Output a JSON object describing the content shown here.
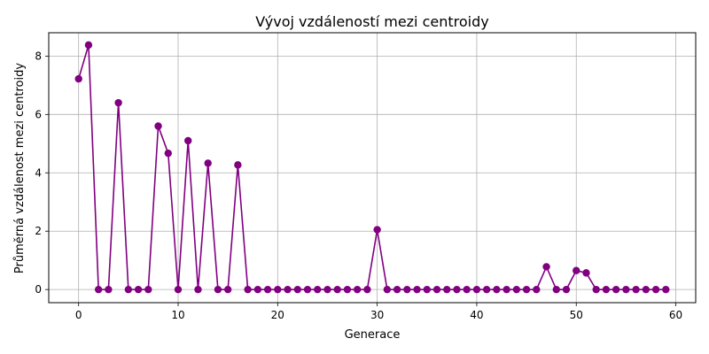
{
  "chart_data": {
    "type": "line",
    "title": "Vývoj vzdáleností mezi centroidy",
    "xlabel": "Generace",
    "ylabel": "Průměrná vzdálenost mezi centroidy",
    "xlim": [
      -3,
      62
    ],
    "ylim": [
      -0.45,
      8.8
    ],
    "xticks": [
      0,
      10,
      20,
      30,
      40,
      50,
      60
    ],
    "yticks": [
      0,
      2,
      4,
      6,
      8
    ],
    "grid": true,
    "series": [
      {
        "color": "#800080",
        "marker": "circle",
        "x": [
          0,
          1,
          2,
          3,
          4,
          5,
          6,
          7,
          8,
          9,
          10,
          11,
          12,
          13,
          14,
          15,
          16,
          17,
          18,
          19,
          20,
          21,
          22,
          23,
          24,
          25,
          26,
          27,
          28,
          29,
          30,
          31,
          32,
          33,
          34,
          35,
          36,
          37,
          38,
          39,
          40,
          41,
          42,
          43,
          44,
          45,
          46,
          47,
          48,
          49,
          50,
          51,
          52,
          53,
          54,
          55,
          56,
          57,
          58,
          59
        ],
        "y": [
          7.22,
          8.38,
          0,
          0,
          6.4,
          0,
          0,
          0,
          5.6,
          4.67,
          0,
          5.1,
          0,
          4.33,
          0,
          0,
          4.27,
          0,
          0,
          0,
          0,
          0,
          0,
          0,
          0,
          0,
          0,
          0,
          0,
          0,
          2.05,
          0,
          0,
          0,
          0,
          0,
          0,
          0,
          0,
          0,
          0,
          0,
          0,
          0,
          0,
          0,
          0,
          0.78,
          0,
          0,
          0.65,
          0.57,
          0,
          0,
          0,
          0,
          0,
          0,
          0,
          0
        ]
      }
    ]
  }
}
